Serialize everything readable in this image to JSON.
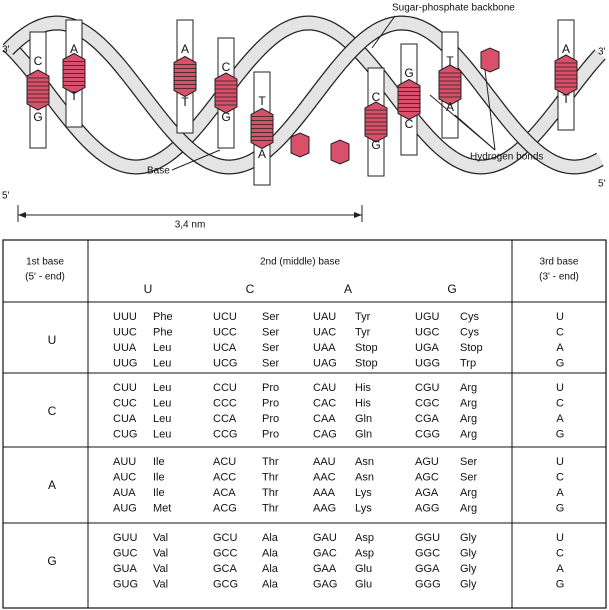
{
  "diagram": {
    "labels": {
      "backbone": "Sugar-phosphate backbone",
      "base": "Base",
      "hbonds": "Hydrogen bonds",
      "width": "3,4 nm",
      "end_3_left": "3'",
      "end_5_left": "5'",
      "end_3_right": "3'",
      "end_5_right": "5'"
    },
    "base_pairs": [
      [
        "C",
        "G"
      ],
      [
        "A",
        "T"
      ],
      [
        "A",
        "T"
      ],
      [
        "C",
        "G"
      ],
      [
        "T",
        "A"
      ],
      [
        "C",
        "G"
      ],
      [
        "G",
        "C"
      ],
      [
        "T",
        "A"
      ],
      [
        "A",
        "T"
      ]
    ]
  },
  "table": {
    "header": {
      "first": [
        "1st base",
        "(5' - end)"
      ],
      "second": "2nd (middle) base",
      "second_bases": [
        "U",
        "C",
        "A",
        "G"
      ],
      "third": [
        "3rd base",
        "(3' - end)"
      ]
    },
    "rows": [
      {
        "first": "U",
        "cells": [
          [
            [
              "UUU",
              "Phe"
            ],
            [
              "UUC",
              "Phe"
            ],
            [
              "UUA",
              "Leu"
            ],
            [
              "UUG",
              "Leu"
            ]
          ],
          [
            [
              "UCU",
              "Ser"
            ],
            [
              "UCC",
              "Ser"
            ],
            [
              "UCA",
              "Ser"
            ],
            [
              "UCG",
              "Ser"
            ]
          ],
          [
            [
              "UAU",
              "Tyr"
            ],
            [
              "UAC",
              "Tyr"
            ],
            [
              "UAA",
              "Stop"
            ],
            [
              "UAG",
              "Stop"
            ]
          ],
          [
            [
              "UGU",
              "Cys"
            ],
            [
              "UGC",
              "Cys"
            ],
            [
              "UGA",
              "Stop"
            ],
            [
              "UGG",
              "Trp"
            ]
          ]
        ],
        "third": [
          "U",
          "C",
          "A",
          "G"
        ]
      },
      {
        "first": "C",
        "cells": [
          [
            [
              "CUU",
              "Leu"
            ],
            [
              "CUC",
              "Leu"
            ],
            [
              "CUA",
              "Leu"
            ],
            [
              "CUG",
              "Leu"
            ]
          ],
          [
            [
              "CCU",
              "Pro"
            ],
            [
              "CCC",
              "Pro"
            ],
            [
              "CCA",
              "Pro"
            ],
            [
              "CCG",
              "Pro"
            ]
          ],
          [
            [
              "CAU",
              "His"
            ],
            [
              "CAC",
              "His"
            ],
            [
              "CAA",
              "Gln"
            ],
            [
              "CAG",
              "Gln"
            ]
          ],
          [
            [
              "CGU",
              "Arg"
            ],
            [
              "CGC",
              "Arg"
            ],
            [
              "CGA",
              "Arg"
            ],
            [
              "CGG",
              "Arg"
            ]
          ]
        ],
        "third": [
          "U",
          "C",
          "A",
          "G"
        ]
      },
      {
        "first": "A",
        "cells": [
          [
            [
              "AUU",
              "Ile"
            ],
            [
              "AUC",
              "Ile"
            ],
            [
              "AUA",
              "Ile"
            ],
            [
              "AUG",
              "Met"
            ]
          ],
          [
            [
              "ACU",
              "Thr"
            ],
            [
              "ACC",
              "Thr"
            ],
            [
              "ACA",
              "Thr"
            ],
            [
              "ACG",
              "Thr"
            ]
          ],
          [
            [
              "AAU",
              "Asn"
            ],
            [
              "AAC",
              "Asn"
            ],
            [
              "AAA",
              "Lys"
            ],
            [
              "AAG",
              "Lys"
            ]
          ],
          [
            [
              "AGU",
              "Ser"
            ],
            [
              "AGC",
              "Ser"
            ],
            [
              "AGA",
              "Arg"
            ],
            [
              "AGG",
              "Arg"
            ]
          ]
        ],
        "third": [
          "U",
          "C",
          "A",
          "G"
        ]
      },
      {
        "first": "G",
        "cells": [
          [
            [
              "GUU",
              "Val"
            ],
            [
              "GUC",
              "Val"
            ],
            [
              "GUA",
              "Val"
            ],
            [
              "GUG",
              "Val"
            ]
          ],
          [
            [
              "GCU",
              "Ala"
            ],
            [
              "GCC",
              "Ala"
            ],
            [
              "GCA",
              "Ala"
            ],
            [
              "GCG",
              "Ala"
            ]
          ],
          [
            [
              "GAU",
              "Asp"
            ],
            [
              "GAC",
              "Asp"
            ],
            [
              "GAA",
              "Glu"
            ],
            [
              "GAG",
              "Glu"
            ]
          ],
          [
            [
              "GGU",
              "Gly"
            ],
            [
              "GGC",
              "Gly"
            ],
            [
              "GGA",
              "Gly"
            ],
            [
              "GGG",
              "Gly"
            ]
          ]
        ],
        "third": [
          "U",
          "C",
          "A",
          "G"
        ]
      }
    ]
  }
}
